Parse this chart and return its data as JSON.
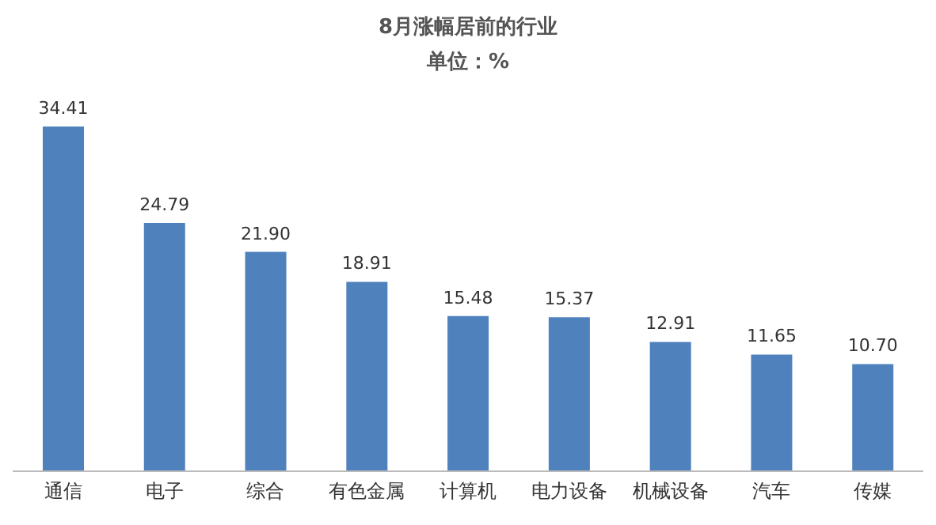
{
  "chart_data": {
    "type": "bar",
    "title": "8月涨幅居前的行业",
    "subtitle": "单位：%",
    "categories": [
      "通信",
      "电子",
      "综合",
      "有色金属",
      "计算机",
      "电力设备",
      "机械设备",
      "汽车",
      "传媒"
    ],
    "values": [
      34.41,
      24.79,
      21.9,
      18.91,
      15.48,
      15.37,
      12.91,
      11.65,
      10.7
    ],
    "value_labels": [
      "34.41",
      "24.79",
      "21.90",
      "18.91",
      "15.48",
      "15.37",
      "12.91",
      "11.65",
      "10.70"
    ],
    "color": "#4f81bd",
    "tick_labels": "x"
  }
}
